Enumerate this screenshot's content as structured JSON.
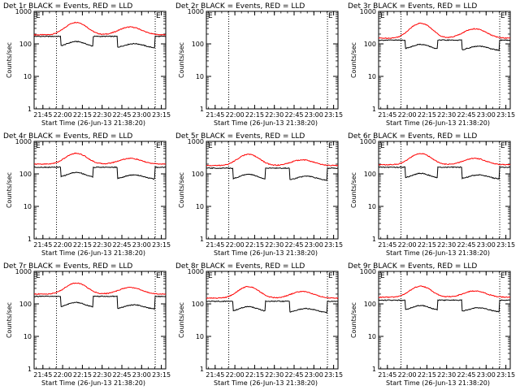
{
  "chart_data": [
    {
      "type": "line",
      "title": "Det 1r BLACK = Events, RED = LLD",
      "xlabel": "Start Time (26-Jun-13 21:38:20)",
      "ylabel": "Counts/sec",
      "x_ticks": [
        "21:45",
        "22:00",
        "22:15",
        "22:30",
        "22:45",
        "23:00",
        "23:15"
      ],
      "y_ticks": [
        "1",
        "10",
        "100",
        "1000"
      ],
      "y_scale": "log",
      "ylim": [
        1,
        1000
      ],
      "xlim_minutes": [
        0,
        100
      ],
      "marker_lines_minutes": [
        17,
        92
      ],
      "marker_label": "E",
      "series": [
        {
          "color": "#ff0000",
          "style": "lld",
          "base": 190,
          "peak1": 460,
          "peak2": 330
        },
        {
          "color": "#000000",
          "style": "events",
          "base": 170,
          "peak1": 150,
          "peak2": 110
        }
      ]
    },
    {
      "type": "line",
      "title": "Det 2r BLACK = Events, RED = LLD",
      "xlabel": "Start Time (26-Jun-13 21:38:20)",
      "ylabel": "Counts/sec",
      "x_ticks": [
        "21:45",
        "22:00",
        "22:15",
        "22:30",
        "22:45",
        "23:00",
        "23:15"
      ],
      "y_ticks": [
        "1",
        "10",
        "100",
        "1000"
      ],
      "y_scale": "log",
      "ylim": [
        1,
        1000
      ],
      "xlim_minutes": [
        0,
        100
      ],
      "marker_lines_minutes": [
        17,
        92
      ],
      "marker_label": "E",
      "series": []
    },
    {
      "type": "line",
      "title": "Det 3r BLACK = Events, RED = LLD",
      "xlabel": "Start Time (26-Jun-13 21:38:20)",
      "ylabel": "Counts/sec",
      "x_ticks": [
        "21:45",
        "22:00",
        "22:15",
        "22:30",
        "22:45",
        "23:00",
        "23:15"
      ],
      "y_ticks": [
        "1",
        "10",
        "100",
        "1000"
      ],
      "y_scale": "log",
      "ylim": [
        1,
        1000
      ],
      "xlim_minutes": [
        0,
        100
      ],
      "marker_lines_minutes": [
        17,
        92
      ],
      "marker_label": "E",
      "series": [
        {
          "color": "#ff0000",
          "style": "lld",
          "base": 150,
          "peak1": 430,
          "peak2": 290
        },
        {
          "color": "#000000",
          "style": "events",
          "base": 130,
          "peak1": 120,
          "peak2": 90
        }
      ]
    },
    {
      "type": "line",
      "title": "Det 4r BLACK = Events, RED = LLD",
      "xlabel": "Start Time (26-Jun-13 21:38:20)",
      "ylabel": "Counts/sec",
      "x_ticks": [
        "21:45",
        "22:00",
        "22:15",
        "22:30",
        "22:45",
        "23:00",
        "23:15"
      ],
      "y_ticks": [
        "1",
        "10",
        "100",
        "1000"
      ],
      "y_scale": "log",
      "ylim": [
        1,
        1000
      ],
      "xlim_minutes": [
        0,
        100
      ],
      "marker_lines_minutes": [
        17,
        92
      ],
      "marker_label": "E",
      "series": [
        {
          "color": "#ff0000",
          "style": "lld",
          "base": 200,
          "peak1": 430,
          "peak2": 300
        },
        {
          "color": "#000000",
          "style": "events",
          "base": 160,
          "peak1": 140,
          "peak2": 100
        }
      ]
    },
    {
      "type": "line",
      "title": "Det 5r BLACK = Events, RED = LLD",
      "xlabel": "Start Time (26-Jun-13 21:38:20)",
      "ylabel": "Counts/sec",
      "x_ticks": [
        "21:45",
        "22:00",
        "22:15",
        "22:30",
        "22:45",
        "23:00",
        "23:15"
      ],
      "y_ticks": [
        "1",
        "10",
        "100",
        "1000"
      ],
      "y_scale": "log",
      "ylim": [
        1,
        1000
      ],
      "xlim_minutes": [
        0,
        100
      ],
      "marker_lines_minutes": [
        17,
        92
      ],
      "marker_label": "E",
      "series": [
        {
          "color": "#ff0000",
          "style": "lld",
          "base": 180,
          "peak1": 400,
          "peak2": 270
        },
        {
          "color": "#000000",
          "style": "events",
          "base": 150,
          "peak1": 120,
          "peak2": 90
        }
      ]
    },
    {
      "type": "line",
      "title": "Det 6r BLACK = Events, RED = LLD",
      "xlabel": "Start Time (26-Jun-13 21:38:20)",
      "ylabel": "Counts/sec",
      "x_ticks": [
        "21:45",
        "22:00",
        "22:15",
        "22:30",
        "22:45",
        "23:00",
        "23:15"
      ],
      "y_ticks": [
        "1",
        "10",
        "100",
        "1000"
      ],
      "y_scale": "log",
      "ylim": [
        1,
        1000
      ],
      "xlim_minutes": [
        0,
        100
      ],
      "marker_lines_minutes": [
        17,
        92
      ],
      "marker_label": "E",
      "series": [
        {
          "color": "#ff0000",
          "style": "lld",
          "base": 190,
          "peak1": 420,
          "peak2": 300
        },
        {
          "color": "#000000",
          "style": "events",
          "base": 160,
          "peak1": 130,
          "peak2": 100
        }
      ]
    },
    {
      "type": "line",
      "title": "Det 7r BLACK = Events, RED = LLD",
      "xlabel": "Start Time (26-Jun-13 21:38:20)",
      "ylabel": "Counts/sec",
      "x_ticks": [
        "21:45",
        "22:00",
        "22:15",
        "22:30",
        "22:45",
        "23:00",
        "23:15"
      ],
      "y_ticks": [
        "1",
        "10",
        "100",
        "1000"
      ],
      "y_scale": "log",
      "ylim": [
        1,
        1000
      ],
      "xlim_minutes": [
        0,
        100
      ],
      "marker_lines_minutes": [
        17,
        92
      ],
      "marker_label": "E",
      "series": [
        {
          "color": "#ff0000",
          "style": "lld",
          "base": 200,
          "peak1": 440,
          "peak2": 320
        },
        {
          "color": "#000000",
          "style": "events",
          "base": 170,
          "peak1": 140,
          "peak2": 100
        }
      ]
    },
    {
      "type": "line",
      "title": "Det 8r BLACK = Events, RED = LLD",
      "xlabel": "Start Time (26-Jun-13 21:38:20)",
      "ylabel": "Counts/sec",
      "x_ticks": [
        "21:45",
        "22:00",
        "22:15",
        "22:30",
        "22:45",
        "23:00",
        "23:15"
      ],
      "y_ticks": [
        "1",
        "10",
        "100",
        "1000"
      ],
      "y_scale": "log",
      "ylim": [
        1,
        1000
      ],
      "xlim_minutes": [
        0,
        100
      ],
      "marker_lines_minutes": [
        17,
        92
      ],
      "marker_label": "E",
      "series": [
        {
          "color": "#ff0000",
          "style": "lld",
          "base": 150,
          "peak1": 340,
          "peak2": 240
        },
        {
          "color": "#000000",
          "style": "events",
          "base": 120,
          "peak1": 100,
          "peak2": 75
        }
      ]
    },
    {
      "type": "line",
      "title": "Det 9r BLACK = Events, RED = LLD",
      "xlabel": "Start Time (26-Jun-13 21:38:20)",
      "ylabel": "Counts/sec",
      "x_ticks": [
        "21:45",
        "22:00",
        "22:15",
        "22:30",
        "22:45",
        "23:00",
        "23:15"
      ],
      "y_ticks": [
        "1",
        "10",
        "100",
        "1000"
      ],
      "y_scale": "log",
      "ylim": [
        1,
        1000
      ],
      "xlim_minutes": [
        0,
        100
      ],
      "marker_lines_minutes": [
        17,
        92
      ],
      "marker_label": "E",
      "series": [
        {
          "color": "#ff0000",
          "style": "lld",
          "base": 160,
          "peak1": 350,
          "peak2": 250
        },
        {
          "color": "#000000",
          "style": "events",
          "base": 130,
          "peak1": 110,
          "peak2": 80
        }
      ]
    }
  ]
}
